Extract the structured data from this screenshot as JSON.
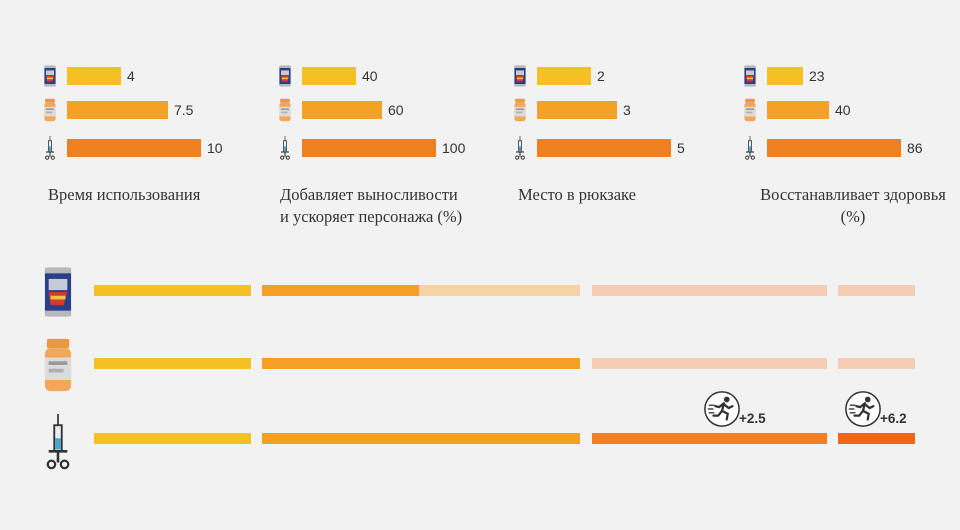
{
  "chart_data": [
    {
      "type": "bar",
      "title": "Время использования",
      "categories": [
        "can-icon",
        "pills-icon",
        "syringe-icon"
      ],
      "values": [
        4,
        7.5,
        10
      ],
      "labels": [
        "4",
        "7.5",
        "10"
      ]
    },
    {
      "type": "bar",
      "title": "Добавляет выносливости и ускоряет персонажа (%)",
      "title_lines": [
        "Добавляет выносливости",
        "и ускоряет персонажа (%)"
      ],
      "categories": [
        "can-icon",
        "pills-icon",
        "syringe-icon"
      ],
      "values": [
        40,
        60,
        100
      ],
      "labels": [
        "40",
        "60",
        "100"
      ]
    },
    {
      "type": "bar",
      "title": "Место в рюкзаке",
      "categories": [
        "can-icon",
        "pills-icon",
        "syringe-icon"
      ],
      "values": [
        2,
        3,
        5
      ],
      "labels": [
        "2",
        "3",
        "5"
      ]
    },
    {
      "type": "bar",
      "title": "Восстанавливает здоровья (%)",
      "title_lines": [
        "Восстанавливает здоровья",
        "(%)"
      ],
      "categories": [
        "can-icon",
        "pills-icon",
        "syringe-icon"
      ],
      "values": [
        23,
        40,
        86
      ],
      "labels": [
        "23",
        "40",
        "86"
      ]
    }
  ],
  "timeline": {
    "rows": [
      {
        "icon": "can-icon",
        "badges": []
      },
      {
        "icon": "pills-icon",
        "badges": []
      },
      {
        "icon": "syringe-icon",
        "badges": [
          {
            "icon": "running-man-icon",
            "label": "+2.5"
          },
          {
            "icon": "running-man-icon",
            "label": "+6.2"
          }
        ]
      }
    ]
  },
  "colors": {
    "background": "#f2f2f2",
    "bar_can": "#f5c024",
    "bar_pills": "#f5a125",
    "bar_syringe": "#ef8022",
    "seg_yellow": "#f5c024",
    "seg_orange": "#f4a024",
    "seg_orange_light": "#f6d2a7",
    "seg_pink_light": "#f4cdb4",
    "seg_dark_orange": "#ef7f22",
    "seg_red_orange": "#ef6718"
  }
}
